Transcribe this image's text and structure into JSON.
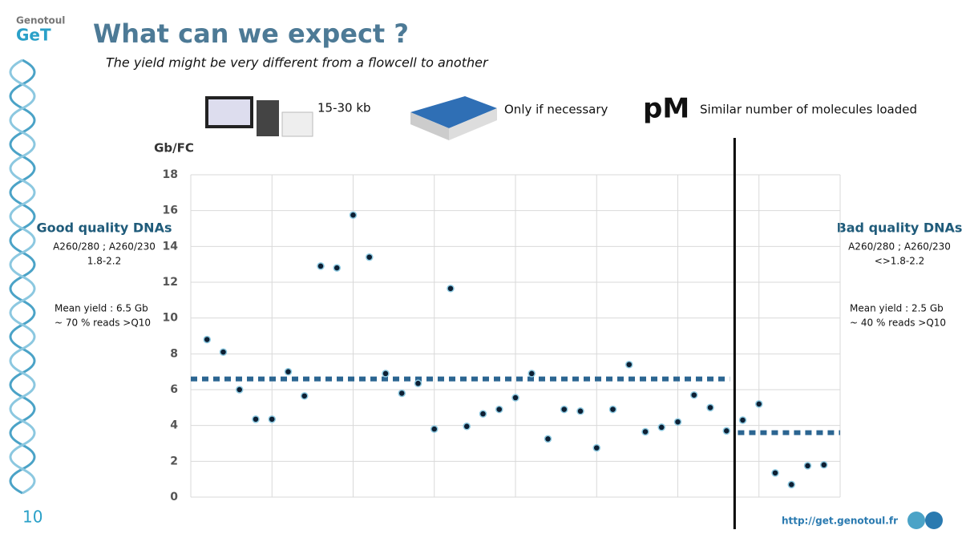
{
  "header": {
    "brand_top": "Genotoul",
    "brand": "GeT",
    "title": "What can we expect ?",
    "subtitle": "The yield might be very different from a flowcell to another"
  },
  "icons": [
    {
      "label": "15-30 kb"
    },
    {
      "label": "Only if necessary"
    },
    {
      "symbol": "pM",
      "label": "Similar number of molecules loaded"
    }
  ],
  "left_panel": {
    "title": "Good quality DNAs",
    "ratio": "A260/280 ; A260/230",
    "range": "1.8-2.2",
    "mean": "Mean yield : 6.5 Gb",
    "reads": "~ 70 % reads >Q10"
  },
  "right_panel": {
    "title": "Bad quality DNAs",
    "ratio": "A260/280 ; A260/230",
    "range": "<>1.8-2.2",
    "mean": "Mean yield : 2.5 Gb",
    "reads": "~ 40 % reads >Q10"
  },
  "chart_data": {
    "type": "scatter",
    "y_label": "Gb/FC",
    "xlim": [
      0,
      40
    ],
    "xgrid": [
      0,
      5,
      10,
      15,
      20,
      25,
      30,
      35,
      40
    ],
    "ylim": [
      0,
      18
    ],
    "yticks": [
      0,
      2,
      4,
      6,
      8,
      10,
      12,
      14,
      16,
      18
    ],
    "grid": true,
    "series": [
      {
        "color": "#0d1f33",
        "x": [
          1,
          2,
          3,
          4,
          5,
          6,
          7,
          8,
          9,
          10,
          11,
          12,
          13,
          14,
          15,
          16,
          17,
          18,
          19,
          20,
          21,
          22,
          23,
          24,
          25,
          26,
          27,
          28,
          29,
          30,
          31,
          32,
          33,
          34,
          35,
          36,
          37,
          38,
          39
        ],
        "values": [
          8.8,
          8.1,
          6.0,
          4.35,
          4.35,
          7.0,
          5.65,
          12.9,
          12.8,
          15.75,
          13.4,
          6.9,
          5.8,
          6.35,
          3.8,
          11.65,
          3.95,
          4.65,
          4.9,
          5.55,
          6.9,
          3.25,
          4.9,
          4.8,
          2.75,
          4.9,
          7.4,
          3.65,
          3.9,
          4.2,
          5.7,
          5.0,
          3.7,
          4.3,
          5.2,
          1.35,
          0.7,
          1.75,
          1.8
        ]
      }
    ],
    "mean_lines": [
      {
        "value": 6.6,
        "x": [
          0,
          33.2
        ],
        "color": "#2b6591"
      },
      {
        "value": 3.6,
        "x": [
          33.7,
          40
        ],
        "color": "#2b6591"
      }
    ],
    "divider_x": 33.5
  },
  "footer": {
    "page": "10",
    "url": "http://get.genotoul.fr"
  }
}
